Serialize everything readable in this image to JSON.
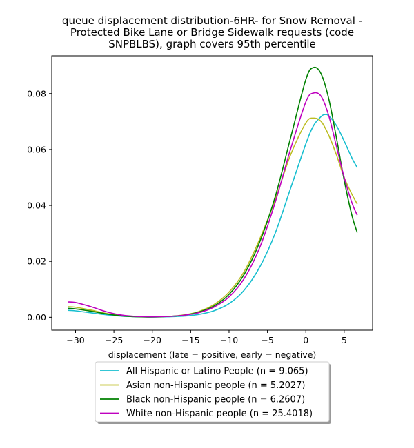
{
  "chart_data": {
    "type": "line",
    "title_lines": [
      "queue displacement distribution-6HR-  for Snow Removal -",
      "Protected Bike Lane or Bridge Sidewalk  requests (code",
      "SNPBLBS), graph covers 95th percentile"
    ],
    "xlabel": "displacement (late = positive, early = negative)",
    "ylabel": "",
    "xlim": [
      -33.1,
      8.7
    ],
    "ylim": [
      -0.0046,
      0.0935
    ],
    "xticks": [
      -30,
      -25,
      -20,
      -15,
      -10,
      -5,
      0,
      5
    ],
    "yticks": [
      0.0,
      0.02,
      0.04,
      0.06,
      0.08
    ],
    "ytick_labels": [
      "0.00",
      "0.02",
      "0.04",
      "0.06",
      "0.08"
    ],
    "grid": false,
    "legend_position": "below",
    "series": [
      {
        "name": "All Hispanic or Latino People (n = 9.065)",
        "color": "#17becf",
        "x": [
          -31,
          -30,
          -28,
          -26,
          -24,
          -22,
          -20,
          -18,
          -16,
          -14,
          -12,
          -10,
          -8,
          -6,
          -4,
          -2,
          0,
          1,
          2,
          2.5,
          3,
          4,
          5,
          6,
          6.7
        ],
        "y": [
          0.0025,
          0.0023,
          0.0016,
          0.0009,
          0.0004,
          0.0002,
          0.0001,
          0.0002,
          0.0004,
          0.001,
          0.0023,
          0.0049,
          0.0098,
          0.018,
          0.03,
          0.046,
          0.062,
          0.0685,
          0.0718,
          0.0725,
          0.072,
          0.0685,
          0.063,
          0.057,
          0.0535
        ]
      },
      {
        "name": "Asian non-Hispanic people (n = 5.2027)",
        "color": "#bcbd22",
        "x": [
          -31,
          -30,
          -28,
          -26,
          -24,
          -22,
          -20,
          -18,
          -16,
          -14,
          -12,
          -10,
          -8,
          -6,
          -4,
          -2,
          0,
          1,
          2,
          3,
          4,
          5,
          6,
          6.7
        ],
        "y": [
          0.0038,
          0.0036,
          0.0026,
          0.0014,
          0.0006,
          0.0003,
          0.0002,
          0.0003,
          0.0008,
          0.002,
          0.0045,
          0.009,
          0.0165,
          0.028,
          0.042,
          0.058,
          0.0695,
          0.0712,
          0.07,
          0.065,
          0.058,
          0.05,
          0.044,
          0.0405
        ]
      },
      {
        "name": "Black non-Hispanic people (n = 6.2607)",
        "color": "#008000",
        "x": [
          -31,
          -30,
          -28,
          -26,
          -24,
          -22,
          -20,
          -18,
          -16,
          -14,
          -12,
          -10,
          -8,
          -6,
          -4,
          -2,
          0,
          1,
          2,
          3,
          4,
          5,
          6,
          6.7
        ],
        "y": [
          0.0032,
          0.003,
          0.0022,
          0.0012,
          0.0005,
          0.0002,
          0.0001,
          0.0003,
          0.0007,
          0.0018,
          0.004,
          0.0082,
          0.0155,
          0.027,
          0.043,
          0.064,
          0.085,
          0.0893,
          0.087,
          0.078,
          0.064,
          0.049,
          0.0365,
          0.0303
        ]
      },
      {
        "name": "White non-Hispanic people (n = 25.4018)",
        "color": "#bf00bf",
        "x": [
          -31,
          -30,
          -28,
          -26,
          -24,
          -22,
          -20,
          -18,
          -16,
          -14,
          -12,
          -10,
          -8,
          -6,
          -4,
          -2,
          0,
          1,
          2,
          3,
          4,
          5,
          6,
          6.7
        ],
        "y": [
          0.0055,
          0.0053,
          0.0038,
          0.002,
          0.0008,
          0.0003,
          0.0002,
          0.0003,
          0.0007,
          0.0016,
          0.0036,
          0.0073,
          0.014,
          0.025,
          0.041,
          0.06,
          0.077,
          0.0802,
          0.079,
          0.072,
          0.061,
          0.05,
          0.041,
          0.0365
        ]
      }
    ]
  }
}
